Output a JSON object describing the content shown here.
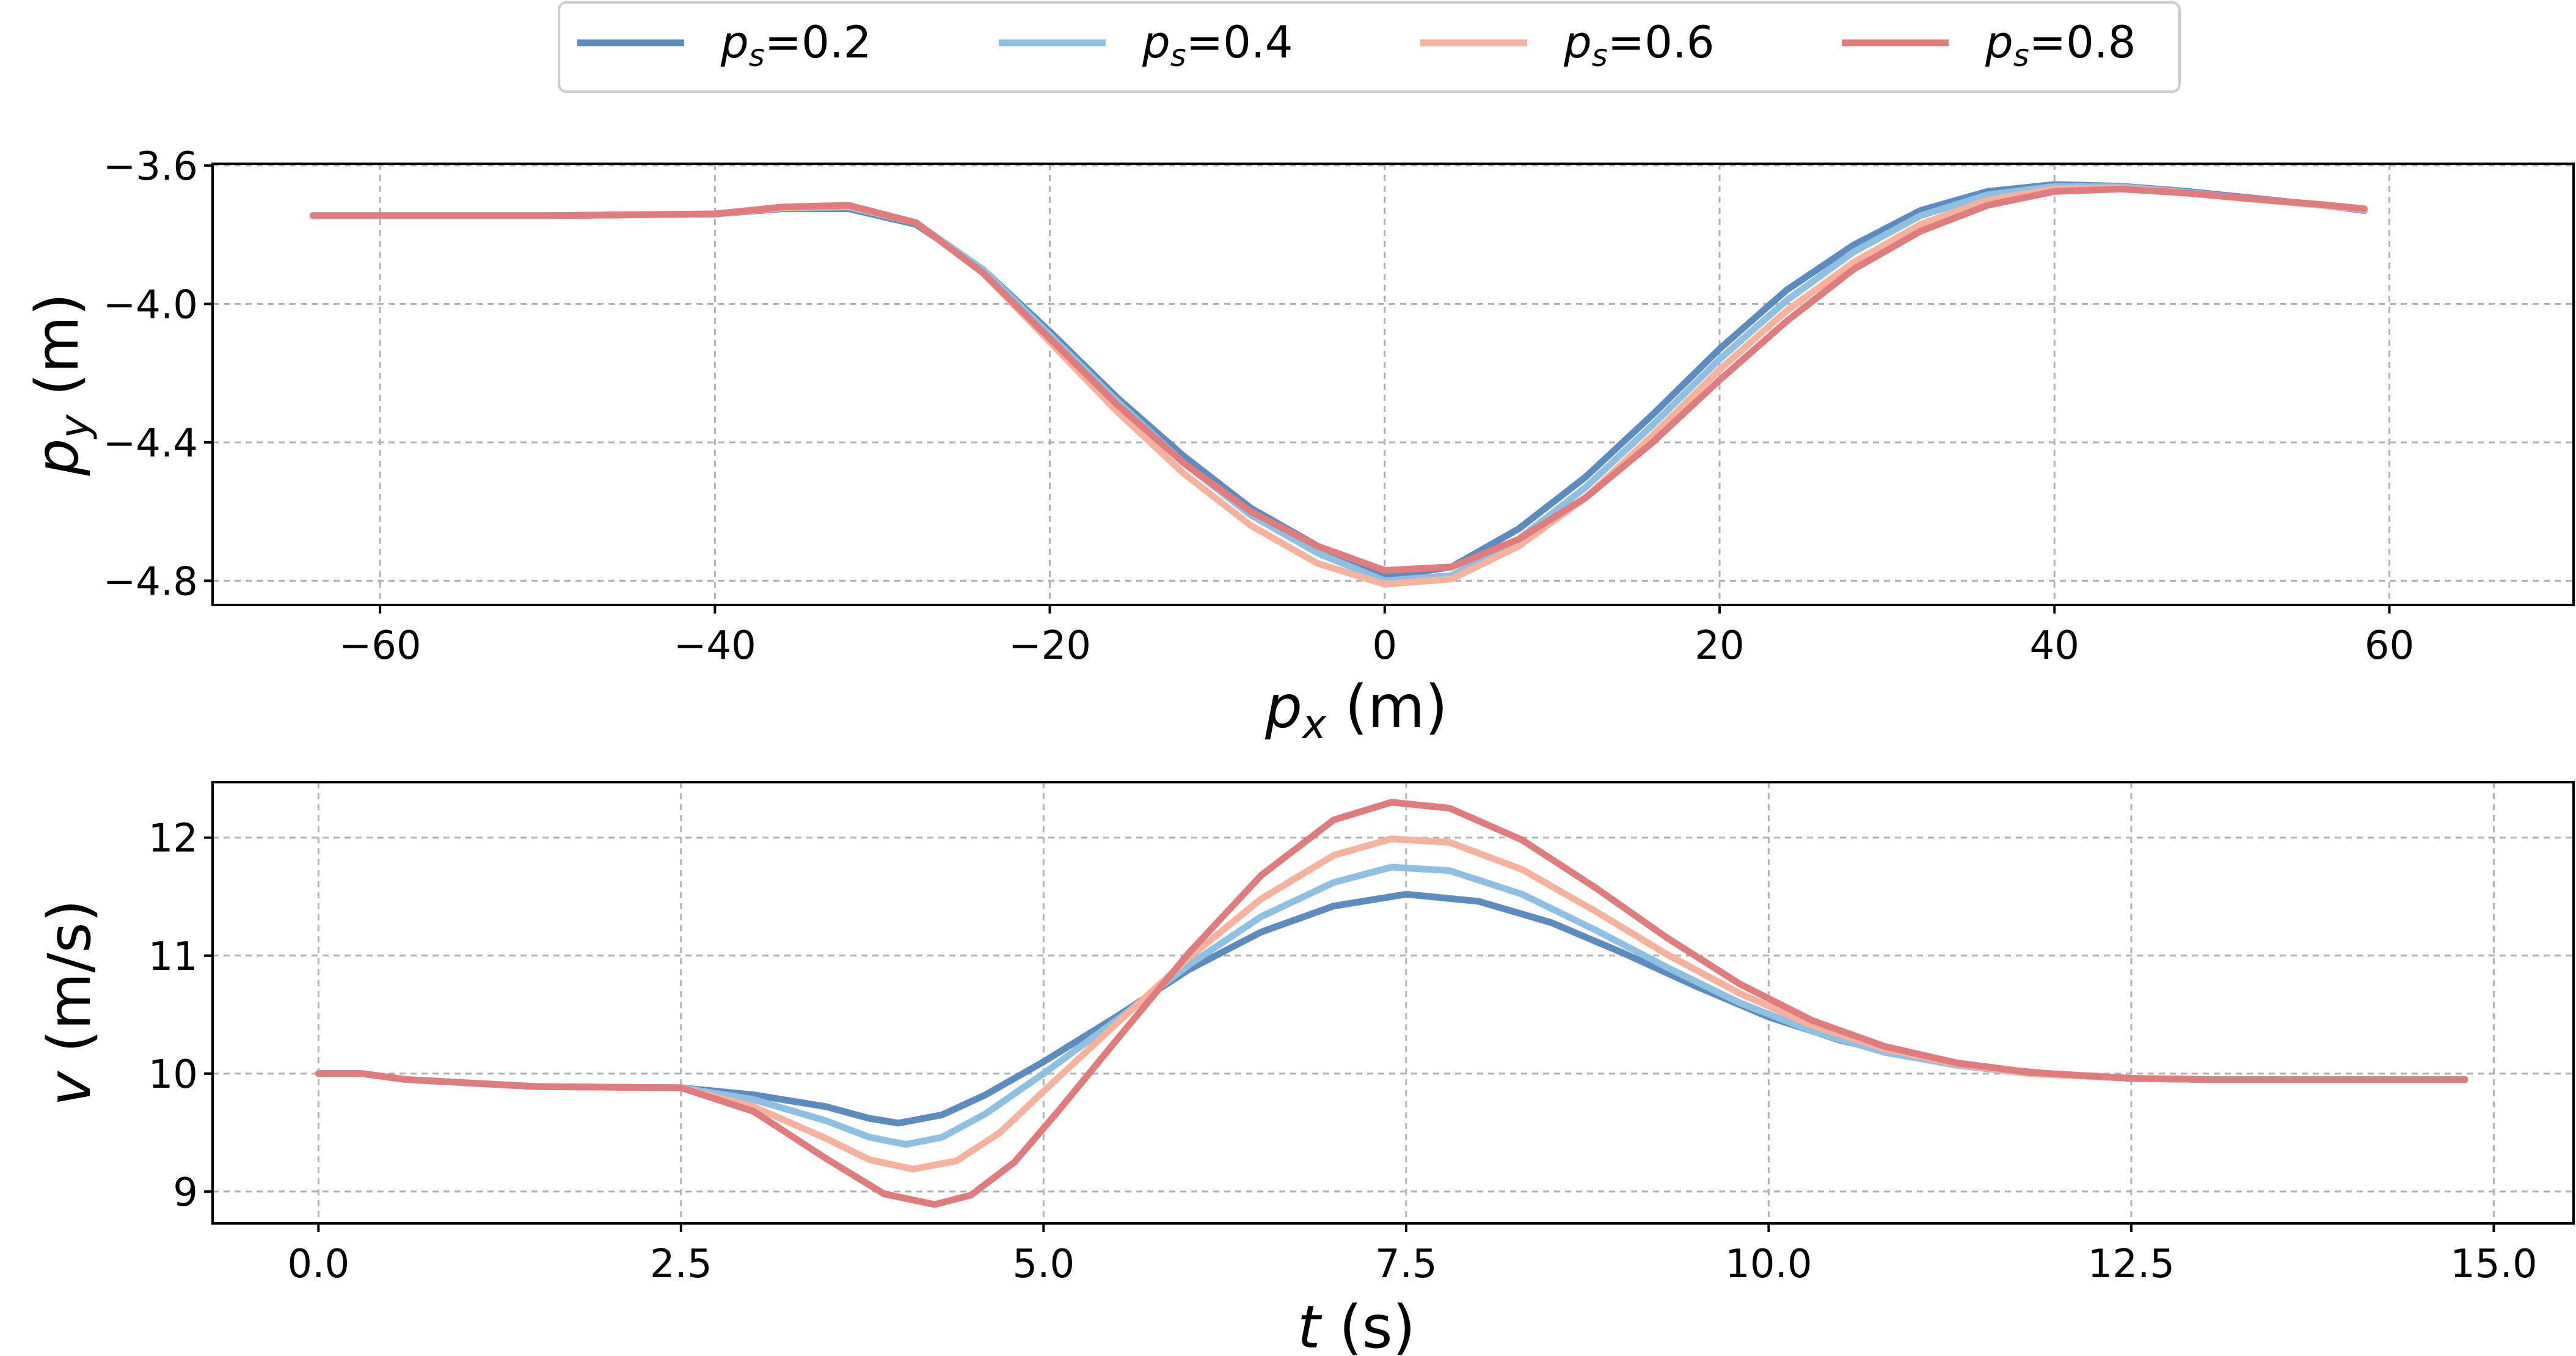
{
  "chart_data": [
    {
      "type": "line",
      "xlabel_var": "p",
      "xlabel_sub": "x",
      "xlabel_unit": " (m)",
      "ylabel_var": "p",
      "ylabel_sub": "y",
      "ylabel_unit": " (m)",
      "xlim": [
        -70,
        71
      ],
      "ylim": [
        -4.87,
        -3.595
      ],
      "xticks": [
        -60,
        -40,
        -20,
        0,
        20,
        40,
        60
      ],
      "xtick_labels": [
        "−60",
        "−40",
        "−20",
        "0",
        "20",
        "40",
        "60"
      ],
      "yticks": [
        -3.6,
        -4.0,
        -4.4,
        -4.8
      ],
      "ytick_labels": [
        "−3.6",
        "−4.0",
        "−4.4",
        "−4.8"
      ],
      "grid": true,
      "series": [
        {
          "name": "p_s=0.2",
          "color": "#5b8bbf",
          "points": [
            [
              -64,
              -3.745
            ],
            [
              -50,
              -3.745
            ],
            [
              -40,
              -3.74
            ],
            [
              -36,
              -3.725
            ],
            [
              -32,
              -3.725
            ],
            [
              -28,
              -3.77
            ],
            [
              -24,
              -3.9
            ],
            [
              -20,
              -4.08
            ],
            [
              -16,
              -4.27
            ],
            [
              -12,
              -4.44
            ],
            [
              -8,
              -4.59
            ],
            [
              -4,
              -4.7
            ],
            [
              0,
              -4.79
            ],
            [
              4,
              -4.76
            ],
            [
              8,
              -4.65
            ],
            [
              12,
              -4.5
            ],
            [
              16,
              -4.32
            ],
            [
              20,
              -4.13
            ],
            [
              24,
              -3.96
            ],
            [
              28,
              -3.83
            ],
            [
              32,
              -3.73
            ],
            [
              36,
              -3.675
            ],
            [
              40,
              -3.655
            ],
            [
              44,
              -3.66
            ],
            [
              48,
              -3.675
            ],
            [
              52,
              -3.695
            ],
            [
              56,
              -3.715
            ],
            [
              58.5,
              -3.73
            ]
          ]
        },
        {
          "name": "p_s=0.4",
          "color": "#8ec0e4",
          "points": [
            [
              -64,
              -3.745
            ],
            [
              -50,
              -3.745
            ],
            [
              -40,
              -3.74
            ],
            [
              -36,
              -3.723
            ],
            [
              -32,
              -3.72
            ],
            [
              -28,
              -3.765
            ],
            [
              -24,
              -3.9
            ],
            [
              -20,
              -4.09
            ],
            [
              -16,
              -4.28
            ],
            [
              -12,
              -4.46
            ],
            [
              -8,
              -4.61
            ],
            [
              -4,
              -4.72
            ],
            [
              0,
              -4.8
            ],
            [
              4,
              -4.785
            ],
            [
              8,
              -4.68
            ],
            [
              12,
              -4.53
            ],
            [
              16,
              -4.35
            ],
            [
              20,
              -4.16
            ],
            [
              24,
              -3.99
            ],
            [
              28,
              -3.85
            ],
            [
              32,
              -3.745
            ],
            [
              36,
              -3.685
            ],
            [
              40,
              -3.66
            ],
            [
              44,
              -3.662
            ],
            [
              48,
              -3.678
            ],
            [
              52,
              -3.697
            ],
            [
              56,
              -3.715
            ],
            [
              58.5,
              -3.728
            ]
          ]
        },
        {
          "name": "p_s=0.6",
          "color": "#f7b29e",
          "points": [
            [
              -64,
              -3.745
            ],
            [
              -50,
              -3.745
            ],
            [
              -40,
              -3.74
            ],
            [
              -36,
              -3.722
            ],
            [
              -32,
              -3.717
            ],
            [
              -28,
              -3.765
            ],
            [
              -24,
              -3.91
            ],
            [
              -20,
              -4.11
            ],
            [
              -16,
              -4.31
            ],
            [
              -12,
              -4.49
            ],
            [
              -8,
              -4.64
            ],
            [
              -4,
              -4.75
            ],
            [
              0,
              -4.81
            ],
            [
              4,
              -4.795
            ],
            [
              8,
              -4.7
            ],
            [
              12,
              -4.56
            ],
            [
              16,
              -4.38
            ],
            [
              20,
              -4.19
            ],
            [
              24,
              -4.02
            ],
            [
              28,
              -3.88
            ],
            [
              32,
              -3.77
            ],
            [
              36,
              -3.7
            ],
            [
              40,
              -3.668
            ],
            [
              44,
              -3.665
            ],
            [
              48,
              -3.68
            ],
            [
              52,
              -3.698
            ],
            [
              56,
              -3.715
            ],
            [
              58.5,
              -3.727
            ]
          ]
        },
        {
          "name": "p_s=0.8",
          "color": "#e07b7e",
          "points": [
            [
              -64,
              -3.745
            ],
            [
              -50,
              -3.745
            ],
            [
              -40,
              -3.74
            ],
            [
              -36,
              -3.72
            ],
            [
              -32,
              -3.715
            ],
            [
              -28,
              -3.765
            ],
            [
              -24,
              -3.91
            ],
            [
              -20,
              -4.1
            ],
            [
              -16,
              -4.29
            ],
            [
              -12,
              -4.46
            ],
            [
              -8,
              -4.6
            ],
            [
              -4,
              -4.7
            ],
            [
              0,
              -4.77
            ],
            [
              4,
              -4.76
            ],
            [
              8,
              -4.68
            ],
            [
              12,
              -4.56
            ],
            [
              16,
              -4.4
            ],
            [
              20,
              -4.22
            ],
            [
              24,
              -4.05
            ],
            [
              28,
              -3.9
            ],
            [
              32,
              -3.79
            ],
            [
              36,
              -3.715
            ],
            [
              40,
              -3.675
            ],
            [
              44,
              -3.668
            ],
            [
              48,
              -3.68
            ],
            [
              52,
              -3.697
            ],
            [
              56,
              -3.713
            ],
            [
              58.5,
              -3.725
            ]
          ]
        }
      ]
    },
    {
      "type": "line",
      "xlabel_var": "t",
      "xlabel_sub": "",
      "xlabel_unit": " (s)",
      "ylabel_var": "v",
      "ylabel_sub": "",
      "ylabel_unit": " (m/s)",
      "xlim": [
        -0.73,
        15.55
      ],
      "ylim": [
        8.73,
        12.47
      ],
      "xticks": [
        0.0,
        2.5,
        5.0,
        7.5,
        10.0,
        12.5,
        15.0
      ],
      "xtick_labels": [
        "0.0",
        "2.5",
        "5.0",
        "7.5",
        "10.0",
        "12.5",
        "15.0"
      ],
      "yticks": [
        9,
        10,
        11,
        12
      ],
      "ytick_labels": [
        "9",
        "10",
        "11",
        "12"
      ],
      "grid": true,
      "series": [
        {
          "name": "p_s=0.2",
          "color": "#5b8bbf",
          "points": [
            [
              0,
              10.0
            ],
            [
              0.3,
              10.0
            ],
            [
              0.6,
              9.95
            ],
            [
              1.5,
              9.89
            ],
            [
              2.5,
              9.88
            ],
            [
              3.0,
              9.82
            ],
            [
              3.5,
              9.72
            ],
            [
              3.8,
              9.62
            ],
            [
              4.0,
              9.58
            ],
            [
              4.3,
              9.65
            ],
            [
              4.6,
              9.82
            ],
            [
              5.0,
              10.1
            ],
            [
              5.5,
              10.48
            ],
            [
              6.0,
              10.88
            ],
            [
              6.5,
              11.2
            ],
            [
              7.0,
              11.42
            ],
            [
              7.5,
              11.52
            ],
            [
              8.0,
              11.46
            ],
            [
              8.5,
              11.28
            ],
            [
              9.0,
              11.02
            ],
            [
              9.5,
              10.74
            ],
            [
              10.0,
              10.48
            ],
            [
              10.5,
              10.28
            ],
            [
              11.0,
              10.14
            ],
            [
              11.5,
              10.05
            ],
            [
              12.0,
              9.99
            ],
            [
              12.5,
              9.96
            ],
            [
              13.0,
              9.95
            ],
            [
              14.0,
              9.95
            ],
            [
              14.8,
              9.95
            ]
          ]
        },
        {
          "name": "p_s=0.4",
          "color": "#8ec0e4",
          "points": [
            [
              0,
              10.0
            ],
            [
              0.3,
              10.0
            ],
            [
              0.6,
              9.95
            ],
            [
              1.5,
              9.89
            ],
            [
              2.5,
              9.88
            ],
            [
              3.0,
              9.78
            ],
            [
              3.5,
              9.6
            ],
            [
              3.8,
              9.46
            ],
            [
              4.05,
              9.4
            ],
            [
              4.3,
              9.46
            ],
            [
              4.6,
              9.66
            ],
            [
              5.0,
              10.0
            ],
            [
              5.5,
              10.45
            ],
            [
              6.0,
              10.92
            ],
            [
              6.5,
              11.33
            ],
            [
              7.0,
              11.62
            ],
            [
              7.4,
              11.75
            ],
            [
              7.8,
              11.72
            ],
            [
              8.3,
              11.52
            ],
            [
              8.8,
              11.22
            ],
            [
              9.3,
              10.9
            ],
            [
              9.8,
              10.6
            ],
            [
              10.3,
              10.36
            ],
            [
              10.8,
              10.18
            ],
            [
              11.3,
              10.07
            ],
            [
              11.8,
              10.0
            ],
            [
              12.5,
              9.96
            ],
            [
              13.0,
              9.95
            ],
            [
              14.0,
              9.95
            ],
            [
              14.8,
              9.95
            ]
          ]
        },
        {
          "name": "p_s=0.6",
          "color": "#f7b29e",
          "points": [
            [
              0,
              10.0
            ],
            [
              0.3,
              10.0
            ],
            [
              0.6,
              9.95
            ],
            [
              1.5,
              9.89
            ],
            [
              2.5,
              9.88
            ],
            [
              3.0,
              9.72
            ],
            [
              3.5,
              9.45
            ],
            [
              3.8,
              9.27
            ],
            [
              4.1,
              9.19
            ],
            [
              4.4,
              9.26
            ],
            [
              4.7,
              9.5
            ],
            [
              5.0,
              9.85
            ],
            [
              5.5,
              10.42
            ],
            [
              6.0,
              10.98
            ],
            [
              6.5,
              11.48
            ],
            [
              7.0,
              11.85
            ],
            [
              7.4,
              11.99
            ],
            [
              7.8,
              11.96
            ],
            [
              8.3,
              11.73
            ],
            [
              8.8,
              11.38
            ],
            [
              9.3,
              11.01
            ],
            [
              9.8,
              10.68
            ],
            [
              10.3,
              10.41
            ],
            [
              10.8,
              10.21
            ],
            [
              11.3,
              10.08
            ],
            [
              11.8,
              10.0
            ],
            [
              12.5,
              9.96
            ],
            [
              13.0,
              9.95
            ],
            [
              14.0,
              9.95
            ],
            [
              14.8,
              9.95
            ]
          ]
        },
        {
          "name": "p_s=0.8",
          "color": "#e07b7e",
          "points": [
            [
              0,
              10.0
            ],
            [
              0.3,
              10.0
            ],
            [
              0.6,
              9.95
            ],
            [
              1.5,
              9.89
            ],
            [
              2.5,
              9.88
            ],
            [
              3.0,
              9.68
            ],
            [
              3.5,
              9.28
            ],
            [
              3.9,
              8.98
            ],
            [
              4.25,
              8.89
            ],
            [
              4.5,
              8.97
            ],
            [
              4.8,
              9.25
            ],
            [
              5.1,
              9.68
            ],
            [
              5.5,
              10.28
            ],
            [
              6.0,
              11.02
            ],
            [
              6.5,
              11.68
            ],
            [
              7.0,
              12.15
            ],
            [
              7.4,
              12.3
            ],
            [
              7.8,
              12.25
            ],
            [
              8.3,
              11.98
            ],
            [
              8.8,
              11.58
            ],
            [
              9.3,
              11.15
            ],
            [
              9.8,
              10.76
            ],
            [
              10.3,
              10.45
            ],
            [
              10.8,
              10.23
            ],
            [
              11.3,
              10.09
            ],
            [
              11.8,
              10.01
            ],
            [
              12.5,
              9.96
            ],
            [
              13.0,
              9.95
            ],
            [
              14.0,
              9.95
            ],
            [
              14.8,
              9.95
            ]
          ]
        }
      ]
    }
  ],
  "legend": {
    "placement": "top-center",
    "entries": [
      {
        "var": "p",
        "sub": "s",
        "rest": "=0.2",
        "color": "#5b8bbf"
      },
      {
        "var": "p",
        "sub": "s",
        "rest": "=0.4",
        "color": "#8ec0e4"
      },
      {
        "var": "p",
        "sub": "s",
        "rest": "=0.6",
        "color": "#f7b29e"
      },
      {
        "var": "p",
        "sub": "s",
        "rest": "=0.8",
        "color": "#e07b7e"
      }
    ]
  }
}
